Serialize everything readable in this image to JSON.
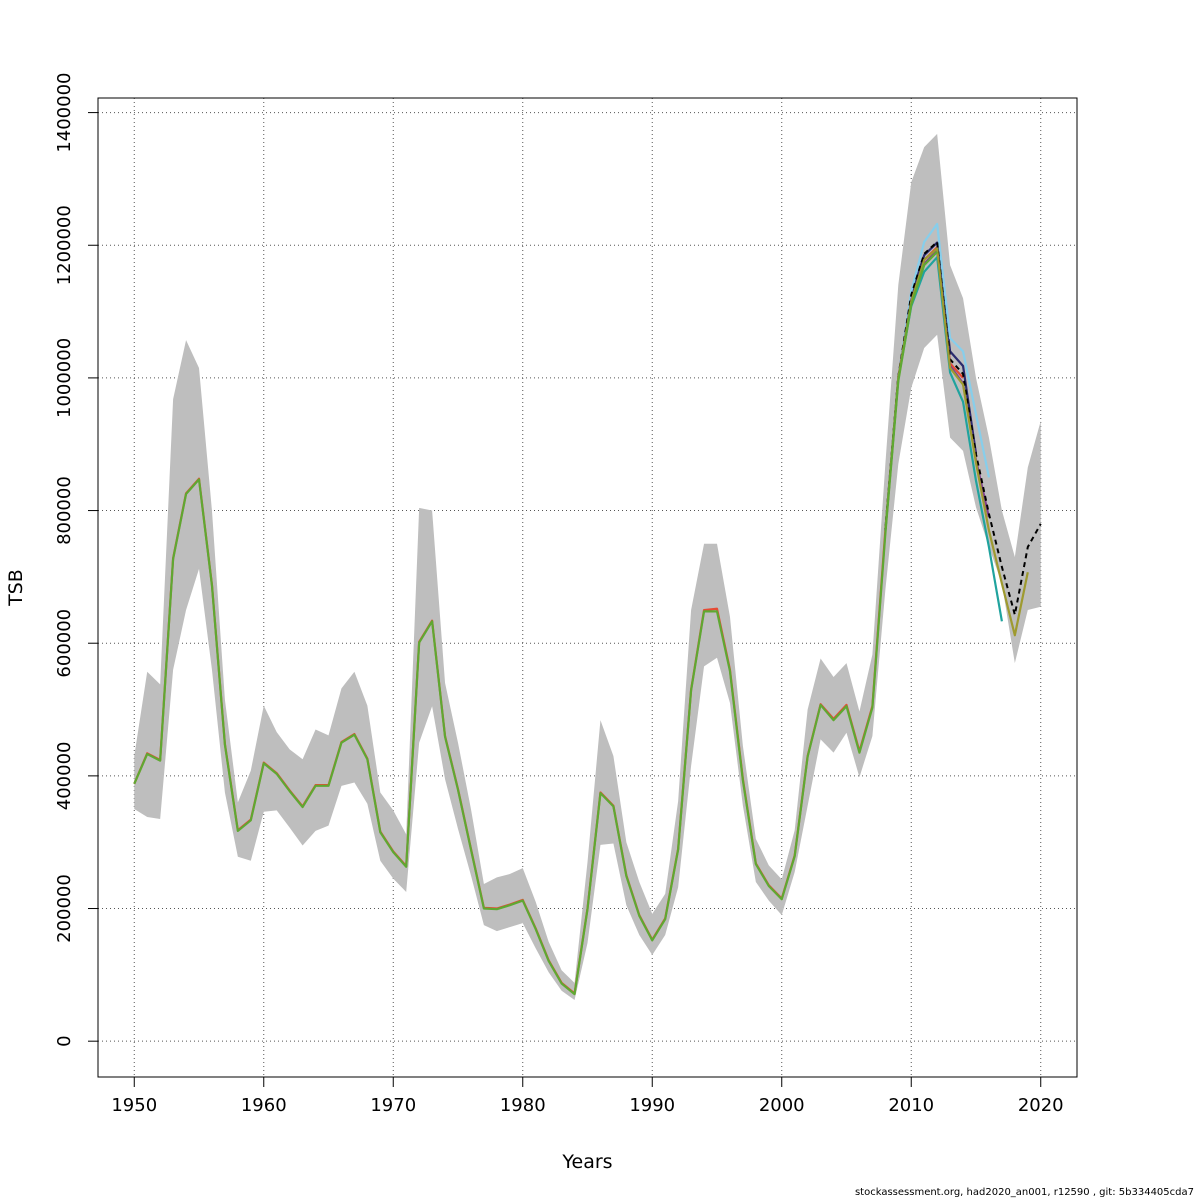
{
  "chart_data": {
    "type": "line",
    "title": "",
    "xlabel": "Years",
    "ylabel": "TSB",
    "xlim": [
      1947.2,
      2022.8
    ],
    "ylim": [
      -54000,
      1422000
    ],
    "x_ticks": [
      1950,
      1960,
      1970,
      1980,
      1990,
      2000,
      2010,
      2020
    ],
    "y_ticks": [
      0,
      200000,
      400000,
      600000,
      800000,
      1000000,
      1200000,
      1400000
    ],
    "y_tick_labels": [
      "0",
      "200000",
      "400000",
      "600000",
      "800000",
      "1000000",
      "1200000",
      "1400000"
    ],
    "grid": true,
    "band_color": "#bebebe",
    "band": {
      "x": [
        1950,
        1951,
        1952,
        1953,
        1954,
        1955,
        1956,
        1957,
        1958,
        1959,
        1960,
        1961,
        1962,
        1963,
        1964,
        1965,
        1966,
        1967,
        1968,
        1969,
        1970,
        1971,
        1972,
        1973,
        1974,
        1975,
        1976,
        1977,
        1978,
        1979,
        1980,
        1981,
        1982,
        1983,
        1984,
        1985,
        1986,
        1987,
        1988,
        1989,
        1990,
        1991,
        1992,
        1993,
        1994,
        1995,
        1996,
        1997,
        1998,
        1999,
        2000,
        2001,
        2002,
        2003,
        2004,
        2005,
        2006,
        2007,
        2008,
        2009,
        2010,
        2011,
        2012,
        2013,
        2014,
        2015,
        2016,
        2017,
        2018,
        2019,
        2020
      ],
      "lower": [
        350000,
        338000,
        335000,
        560000,
        650000,
        712000,
        560000,
        375000,
        278000,
        272000,
        346000,
        348000,
        322000,
        295000,
        317000,
        325000,
        385000,
        390000,
        358000,
        272000,
        245000,
        225000,
        450000,
        505000,
        395000,
        320000,
        250000,
        175000,
        166000,
        172000,
        178000,
        140000,
        104000,
        76000,
        62000,
        148000,
        296000,
        298000,
        205000,
        160000,
        130000,
        160000,
        232000,
        415000,
        565000,
        578000,
        510000,
        355000,
        240000,
        212000,
        190000,
        255000,
        355000,
        455000,
        435000,
        465000,
        398000,
        460000,
        680000,
        870000,
        985000,
        1045000,
        1065000,
        910000,
        890000,
        805000,
        745000,
        690000,
        570000,
        650000,
        655000
      ],
      "upper": [
        430000,
        557000,
        538000,
        968000,
        1057000,
        1015000,
        800000,
        515000,
        360000,
        408000,
        506000,
        466000,
        440000,
        425000,
        470000,
        461000,
        532000,
        557000,
        506000,
        375000,
        348000,
        312000,
        804000,
        800000,
        540000,
        450000,
        350000,
        237000,
        247000,
        252000,
        261000,
        210000,
        150000,
        107000,
        88000,
        270000,
        484000,
        430000,
        300000,
        240000,
        192000,
        222000,
        362000,
        650000,
        750000,
        750000,
        640000,
        445000,
        305000,
        265000,
        244000,
        318000,
        500000,
        577000,
        549000,
        570000,
        497000,
        583000,
        870000,
        1140000,
        1295000,
        1348000,
        1368000,
        1170000,
        1120000,
        1000000,
        910000,
        800000,
        730000,
        865000,
        935000
      ]
    },
    "series": [
      {
        "color": "#e64b35",
        "x": [
          1950,
          1951,
          1952,
          1953,
          1954,
          1955,
          1956,
          1957,
          1958,
          1959,
          1960,
          1961,
          1962,
          1963,
          1964,
          1965,
          1966,
          1967,
          1968,
          1969,
          1970,
          1971,
          1972,
          1973,
          1974,
          1975,
          1976,
          1977,
          1978,
          1979,
          1980,
          1981,
          1982,
          1983,
          1984,
          1985,
          1986,
          1987,
          1988,
          1989,
          1990,
          1991,
          1992,
          1993,
          1994,
          1995,
          1996,
          1997,
          1998,
          1999,
          2000,
          2001,
          2002,
          2003,
          2004,
          2005,
          2006,
          2007,
          2008,
          2009,
          2010,
          2011,
          2012,
          2013,
          2014
        ],
        "y": [
          388000,
          434000,
          424000,
          728000,
          826000,
          848000,
          688000,
          448000,
          318000,
          334000,
          420000,
          404000,
          378000,
          354000,
          386000,
          386000,
          451000,
          463000,
          426000,
          316000,
          286000,
          264000,
          602000,
          634000,
          460000,
          380000,
          290000,
          201000,
          200000,
          206000,
          213000,
          170000,
          122000,
          88000,
          72000,
          200000,
          375000,
          355000,
          250000,
          190000,
          153000,
          185000,
          290000,
          530000,
          650000,
          652000,
          560000,
          395000,
          268000,
          235000,
          215000,
          280000,
          430000,
          508000,
          486000,
          507000,
          437000,
          505000,
          770000,
          1000000,
          1115000,
          1178000,
          1197000,
          1022000,
          1000000
        ]
      },
      {
        "color": "#2b2b6e",
        "x": [
          2008,
          2009,
          2010,
          2011,
          2012,
          2013,
          2014,
          2015
        ],
        "y": [
          770000,
          1000000,
          1125000,
          1185000,
          1204000,
          1040000,
          1018000,
          886000
        ]
      },
      {
        "color": "#87ceeb",
        "x": [
          2008,
          2009,
          2010,
          2011,
          2012,
          2013,
          2014,
          2015,
          2016
        ],
        "y": [
          770000,
          1000000,
          1130000,
          1205000,
          1232000,
          1060000,
          1040000,
          945000,
          850000
        ]
      },
      {
        "color": "#7f3f8f",
        "x": [
          2008,
          2009,
          2010,
          2011,
          2012,
          2013,
          2014,
          2015,
          2016
        ],
        "y": [
          770000,
          1000000,
          1118000,
          1172000,
          1192000,
          1018000,
          992000,
          876000,
          790000
        ]
      },
      {
        "color": "#20a39e",
        "x": [
          2008,
          2009,
          2010,
          2011,
          2012,
          2013,
          2014,
          2015,
          2016,
          2017
        ],
        "y": [
          770000,
          998000,
          1108000,
          1160000,
          1182000,
          1008000,
          964000,
          845000,
          745000,
          633000
        ]
      },
      {
        "color": "#000000",
        "dashed": true,
        "x": [
          2008,
          2009,
          2010,
          2011,
          2012,
          2013,
          2014,
          2015,
          2016,
          2017,
          2018,
          2019,
          2020
        ],
        "y": [
          772000,
          1002000,
          1125000,
          1187000,
          1205000,
          1028000,
          1006000,
          885000,
          795000,
          715000,
          643000,
          745000,
          780000
        ]
      },
      {
        "color": "#9e9a2f",
        "x": [
          2008,
          2009,
          2010,
          2011,
          2012,
          2013,
          2014,
          2015,
          2016,
          2017,
          2018,
          2019
        ],
        "y": [
          770000,
          1000000,
          1115000,
          1178000,
          1195000,
          1015000,
          990000,
          872000,
          770000,
          690000,
          612000,
          707000
        ]
      },
      {
        "color": "#5fa832",
        "x": [
          1950,
          1951,
          1952,
          1953,
          1954,
          1955,
          1956,
          1957,
          1958,
          1959,
          1960,
          1961,
          1962,
          1963,
          1964,
          1965,
          1966,
          1967,
          1968,
          1969,
          1970,
          1971,
          1972,
          1973,
          1974,
          1975,
          1976,
          1977,
          1978,
          1979,
          1980,
          1981,
          1982,
          1983,
          1984,
          1985,
          1986,
          1987,
          1988,
          1989,
          1990,
          1991,
          1992,
          1993,
          1994,
          1995,
          1996,
          1997,
          1998,
          1999,
          2000,
          2001,
          2002,
          2003,
          2004,
          2005,
          2006,
          2007,
          2008,
          2009,
          2010,
          2011,
          2012
        ],
        "y": [
          388000,
          433000,
          423000,
          727000,
          825000,
          847000,
          687000,
          447000,
          317000,
          333000,
          419000,
          403000,
          377000,
          353000,
          385000,
          385000,
          450000,
          462000,
          425000,
          315000,
          285000,
          263000,
          601000,
          633000,
          459000,
          379000,
          289000,
          200000,
          199000,
          205000,
          212000,
          169000,
          121000,
          87000,
          71000,
          199000,
          374000,
          354000,
          249000,
          189000,
          152000,
          184000,
          289000,
          529000,
          648000,
          648000,
          558000,
          393000,
          267000,
          234000,
          214000,
          279000,
          429000,
          507000,
          484000,
          505000,
          435000,
          503000,
          765000,
          995000,
          1110000,
          1170000,
          1190000
        ]
      }
    ]
  },
  "footer": {
    "text": "stockassessment.org, had2020_an001, r12590 , git: 5b334405cda7"
  }
}
